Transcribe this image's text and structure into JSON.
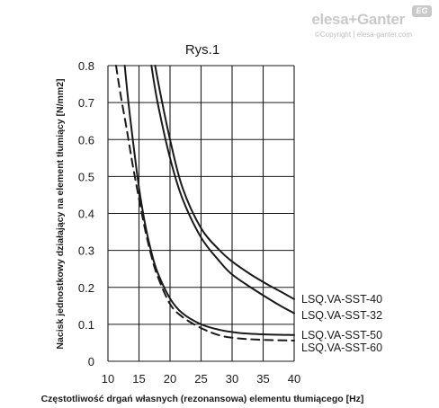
{
  "brand": {
    "name": "elesa+Ganter",
    "copyright": "©Copyright | elesa-ganter.com",
    "badge": "EG"
  },
  "colors": {
    "line": "#1a1a1a",
    "grid": "#1a1a1a",
    "watermark": "#c9c9c9"
  },
  "chart_data": {
    "type": "line",
    "title": "Rys.1",
    "xlabel": "Częstotliwość drgań własnych (rezonansowa) elementu tłumiącego [Hz]",
    "ylabel": "Nacisk jednostkowy działający na element tłumiący [N/mm2]",
    "xlim": [
      10,
      40
    ],
    "ylim": [
      0,
      0.8
    ],
    "x_ticks": [
      "10",
      "15",
      "20",
      "25",
      "30",
      "35",
      "40"
    ],
    "y_ticks": [
      "0",
      "0.1",
      "0.2",
      "0.3",
      "0.4",
      "0.5",
      "0.6",
      "0.7",
      "0.8"
    ],
    "grid": true,
    "series": [
      {
        "name": "LSQ.VA-SST-40",
        "style": "solid",
        "x": [
          17.6,
          18.5,
          20,
          22,
          25,
          28,
          30,
          33,
          36,
          38,
          40
        ],
        "y": [
          0.8,
          0.72,
          0.6,
          0.47,
          0.36,
          0.3,
          0.27,
          0.235,
          0.205,
          0.187,
          0.168
        ]
      },
      {
        "name": "LSQ.VA-SST-32",
        "style": "solid",
        "x": [
          17,
          18,
          20,
          22,
          25,
          28,
          30,
          33,
          36,
          38,
          40
        ],
        "y": [
          0.8,
          0.7,
          0.55,
          0.44,
          0.335,
          0.27,
          0.235,
          0.2,
          0.168,
          0.148,
          0.13
        ]
      },
      {
        "name": "LSQ.VA-SST-50",
        "style": "solid",
        "x": [
          12.7,
          13.3,
          14,
          15,
          16,
          17,
          18,
          20,
          22,
          25,
          28,
          31,
          35,
          40
        ],
        "y": [
          0.8,
          0.7,
          0.6,
          0.47,
          0.37,
          0.295,
          0.24,
          0.17,
          0.13,
          0.1,
          0.085,
          0.077,
          0.073,
          0.071
        ]
      },
      {
        "name": "LSQ.VA-SST-60",
        "style": "dashed",
        "x": [
          11.3,
          12,
          13,
          14,
          15,
          16,
          17,
          18,
          20,
          22,
          25,
          28,
          31,
          35,
          40
        ],
        "y": [
          0.8,
          0.725,
          0.63,
          0.53,
          0.44,
          0.355,
          0.285,
          0.23,
          0.155,
          0.12,
          0.09,
          0.07,
          0.062,
          0.058,
          0.056
        ]
      }
    ]
  }
}
